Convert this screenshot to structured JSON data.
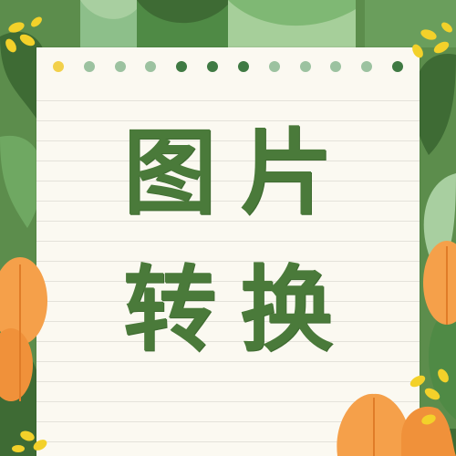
{
  "title": {
    "line1": "图片",
    "line2": "转换"
  },
  "colors": {
    "background_green": "#5c8d4c",
    "dark_leaf": "#3e6b34",
    "light_leaf": "#a8cfa0",
    "orange_flower": "#f5a04a",
    "yellow_flower": "#f3d12a",
    "paper": "#fbf9f1",
    "text_green": "#4a7a3a"
  },
  "decor": {
    "hole_colors": [
      "#f2d04a",
      "#9cc2a0",
      "#9cc2a0",
      "#9cc2a0",
      "#3f7a43",
      "#3f7a43",
      "#3f7a43",
      "#9cc2a0",
      "#9cc2a0",
      "#9cc2a0",
      "#9cc2a0",
      "#3f7a43"
    ]
  }
}
